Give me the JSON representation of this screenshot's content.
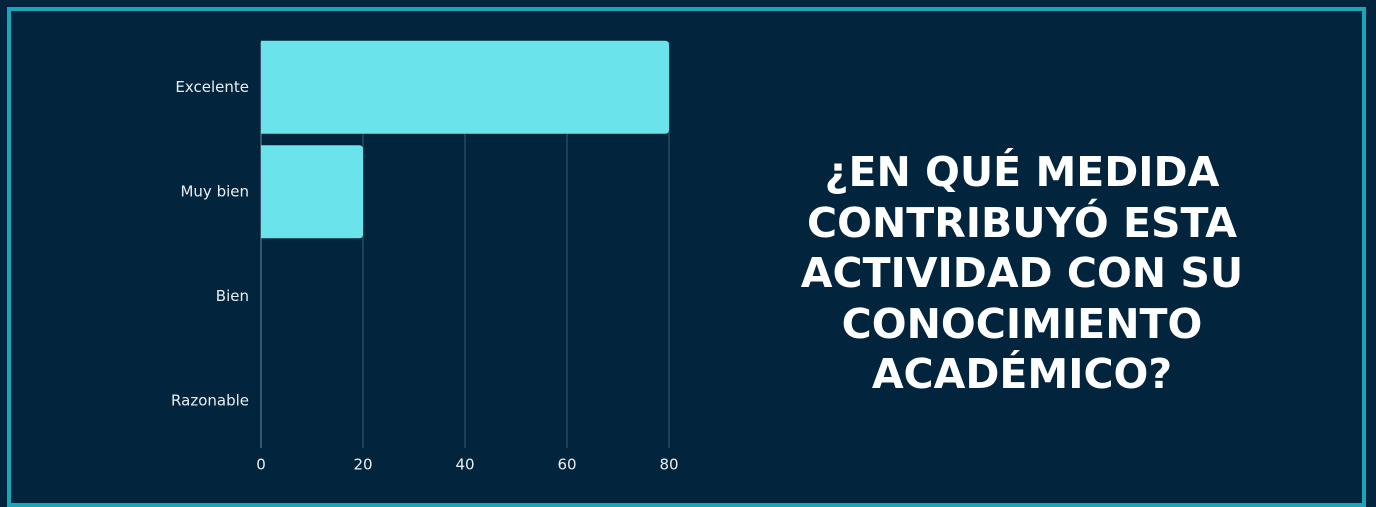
{
  "chart_data": {
    "type": "barh",
    "title": "¿EN QUÉ MEDIDA CONTRIBUYÓ ESTA ACTIVIDAD CON SU CONOCIMIENTO ACADÉMICO?",
    "categories": [
      "Excelente",
      "Muy bien",
      "Bien",
      "Razonable"
    ],
    "values": [
      80,
      20,
      0,
      0
    ],
    "color": "#6ae4ea",
    "xlim": [
      0,
      80
    ],
    "xticks": [
      0,
      20,
      40,
      60,
      80
    ],
    "grid": true
  }
}
